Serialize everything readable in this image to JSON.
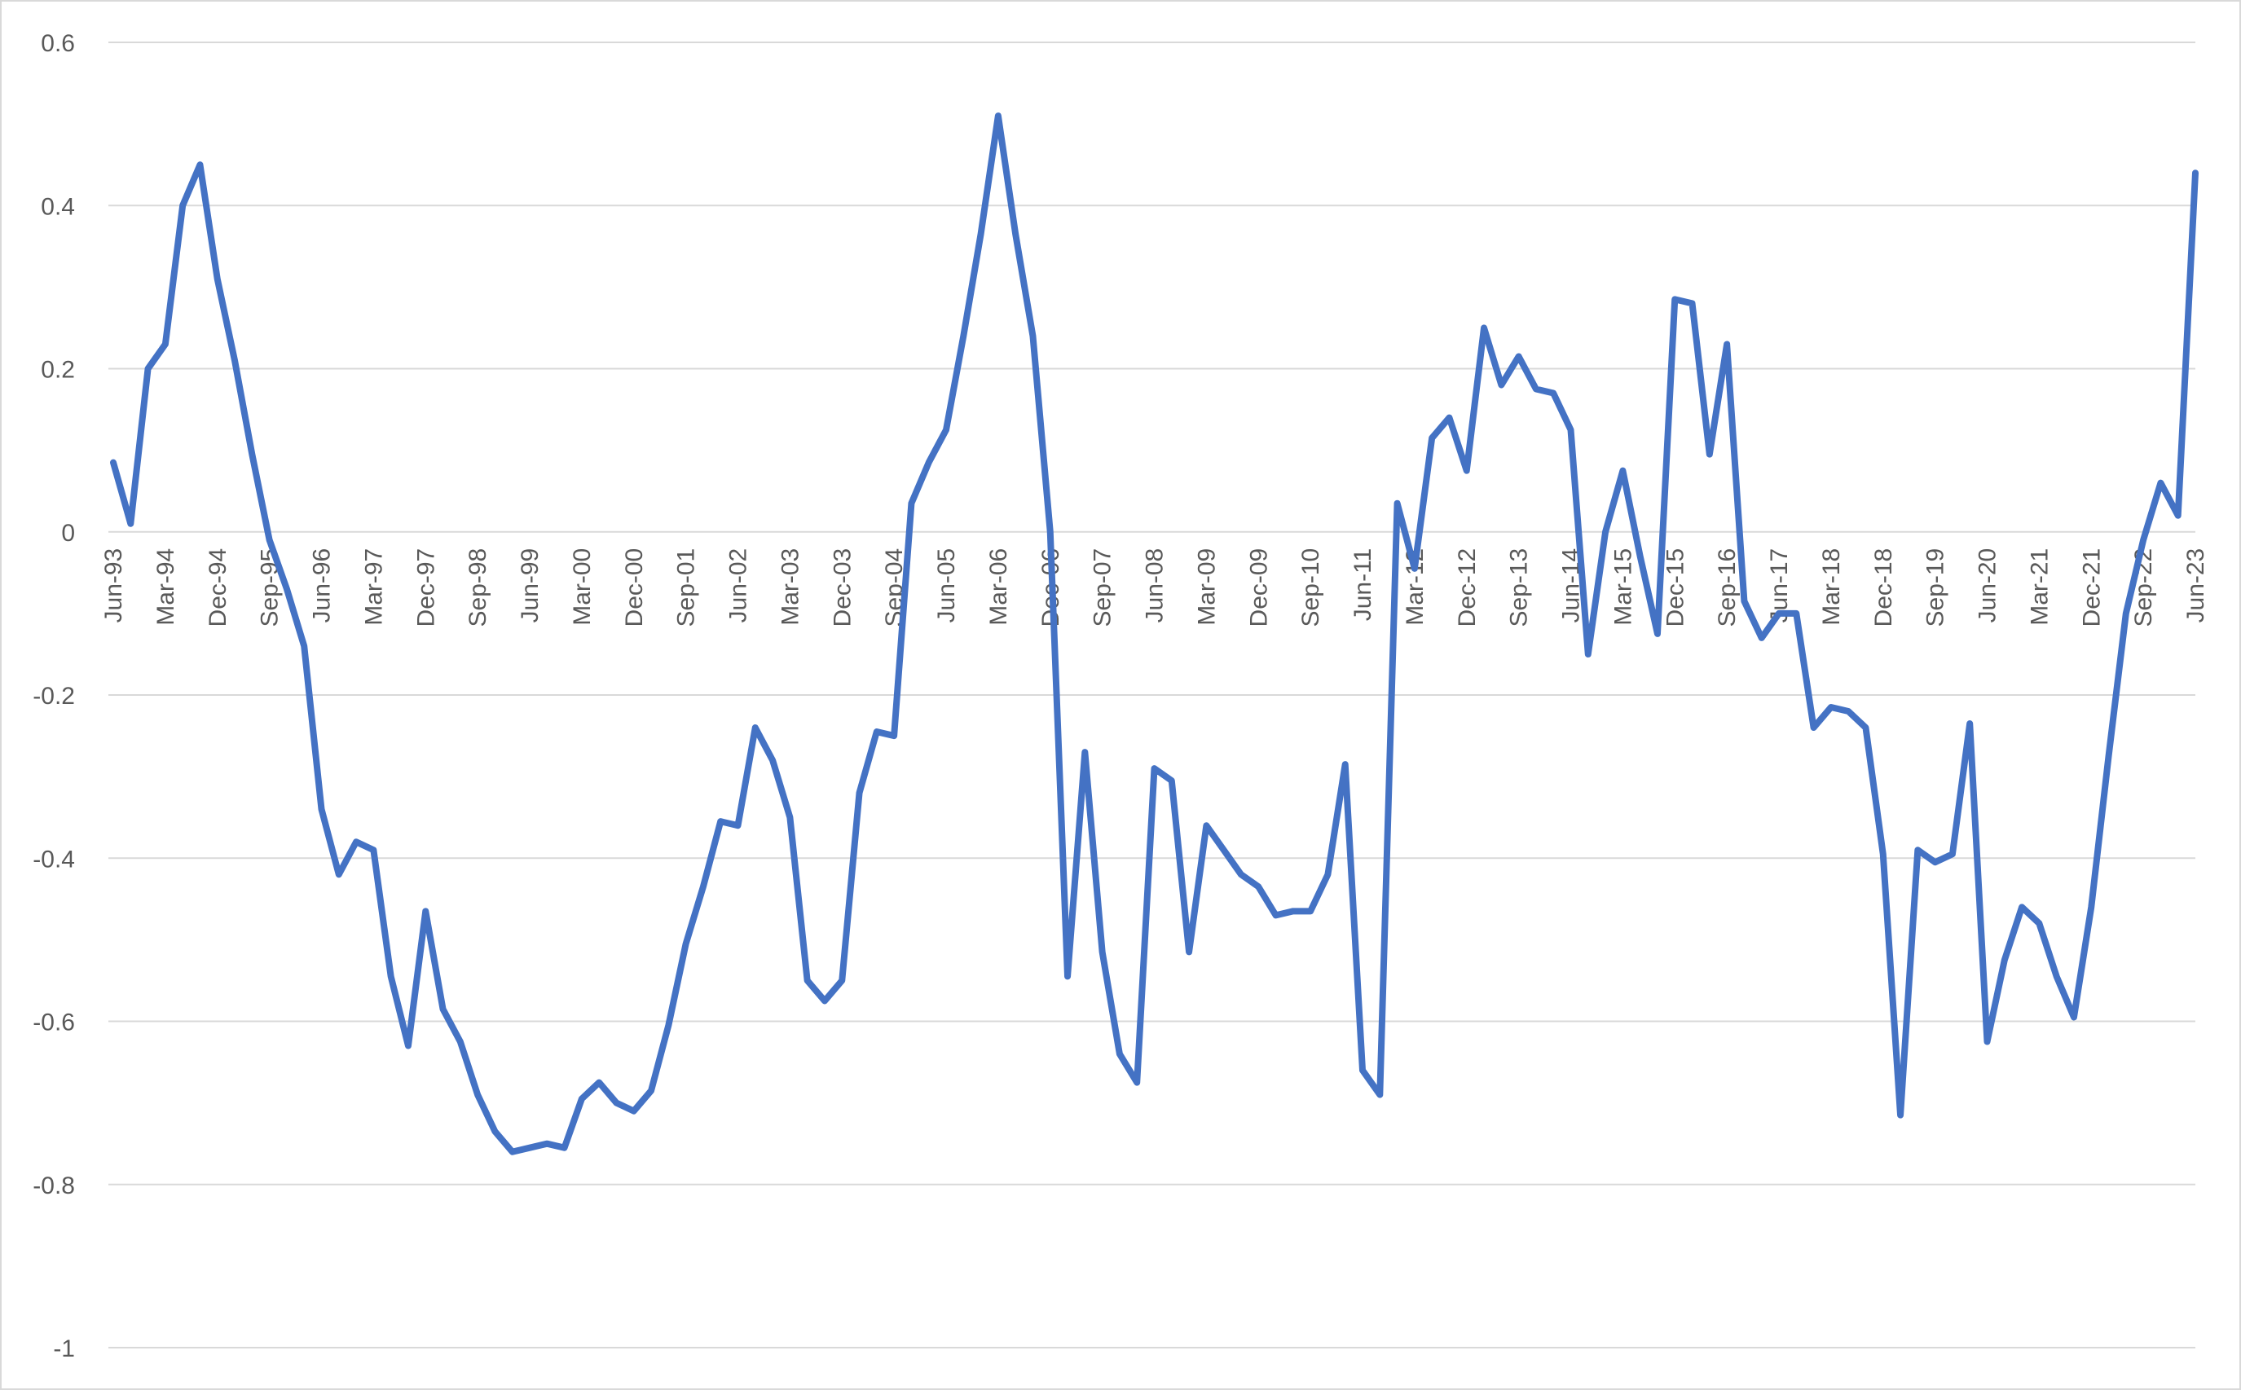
{
  "chart_data": {
    "type": "line",
    "title": "",
    "xlabel": "",
    "ylabel": "",
    "ylim": [
      -1,
      0.6
    ],
    "yticks": [
      0.6,
      0.4,
      0.2,
      0,
      -0.2,
      -0.4,
      -0.6,
      -0.8,
      -1
    ],
    "ytick_labels": [
      "0.6",
      "0.4",
      "0.2",
      "0",
      "-0.2",
      "-0.4",
      "-0.6",
      "-0.8",
      "-1"
    ],
    "grid": "horizontal",
    "legend": "none",
    "line_color": "#4472C4",
    "x_tick_labels": [
      "Jun-93",
      "Mar-94",
      "Dec-94",
      "Sep-95",
      "Jun-96",
      "Mar-97",
      "Dec-97",
      "Sep-98",
      "Jun-99",
      "Mar-00",
      "Dec-00",
      "Sep-01",
      "Jun-02",
      "Mar-03",
      "Dec-03",
      "Sep-04",
      "Jun-05",
      "Mar-06",
      "Dec-06",
      "Sep-07",
      "Jun-08",
      "Mar-09",
      "Dec-09",
      "Sep-10",
      "Jun-11",
      "Mar-12",
      "Dec-12",
      "Sep-13",
      "Jun-14",
      "Mar-15",
      "Dec-15",
      "Sep-16",
      "Jun-17",
      "Mar-18",
      "Dec-18",
      "Sep-19",
      "Jun-20",
      "Mar-21",
      "Dec-21",
      "Sep-22",
      "Jun-23"
    ],
    "series": [
      {
        "values": [
          0.085,
          0.01,
          0.2,
          0.23,
          0.4,
          0.45,
          0.31,
          0.21,
          0.095,
          -0.01,
          -0.07,
          -0.14,
          -0.34,
          -0.42,
          -0.38,
          -0.39,
          -0.545,
          -0.63,
          -0.465,
          -0.585,
          -0.625,
          -0.69,
          -0.735,
          -0.76,
          -0.755,
          -0.75,
          -0.755,
          -0.695,
          -0.675,
          -0.7,
          -0.71,
          -0.685,
          -0.605,
          -0.505,
          -0.435,
          -0.355,
          -0.36,
          -0.24,
          -0.28,
          -0.35,
          -0.55,
          -0.575,
          -0.55,
          -0.32,
          -0.245,
          -0.25,
          0.035,
          0.085,
          0.125,
          0.24,
          0.365,
          0.51,
          0.365,
          0.24,
          0.0,
          -0.545,
          -0.27,
          -0.515,
          -0.64,
          -0.675,
          -0.29,
          -0.305,
          -0.515,
          -0.36,
          -0.39,
          -0.42,
          -0.435,
          -0.47,
          -0.465,
          -0.465,
          -0.42,
          -0.285,
          -0.66,
          -0.69,
          0.035,
          -0.045,
          0.115,
          0.14,
          0.075,
          0.25,
          0.18,
          0.215,
          0.175,
          0.17,
          0.125,
          -0.15,
          0.0,
          0.075,
          -0.03,
          -0.125,
          0.285,
          0.28,
          0.095,
          0.23,
          -0.085,
          -0.13,
          -0.1,
          -0.1,
          -0.24,
          -0.215,
          -0.22,
          -0.24,
          -0.395,
          -0.715,
          -0.39,
          -0.405,
          -0.395,
          -0.235,
          -0.625,
          -0.525,
          -0.46,
          -0.48,
          -0.545,
          -0.595,
          -0.46,
          -0.275,
          -0.1,
          -0.01,
          0.06,
          0.02,
          0.44
        ]
      }
    ]
  }
}
